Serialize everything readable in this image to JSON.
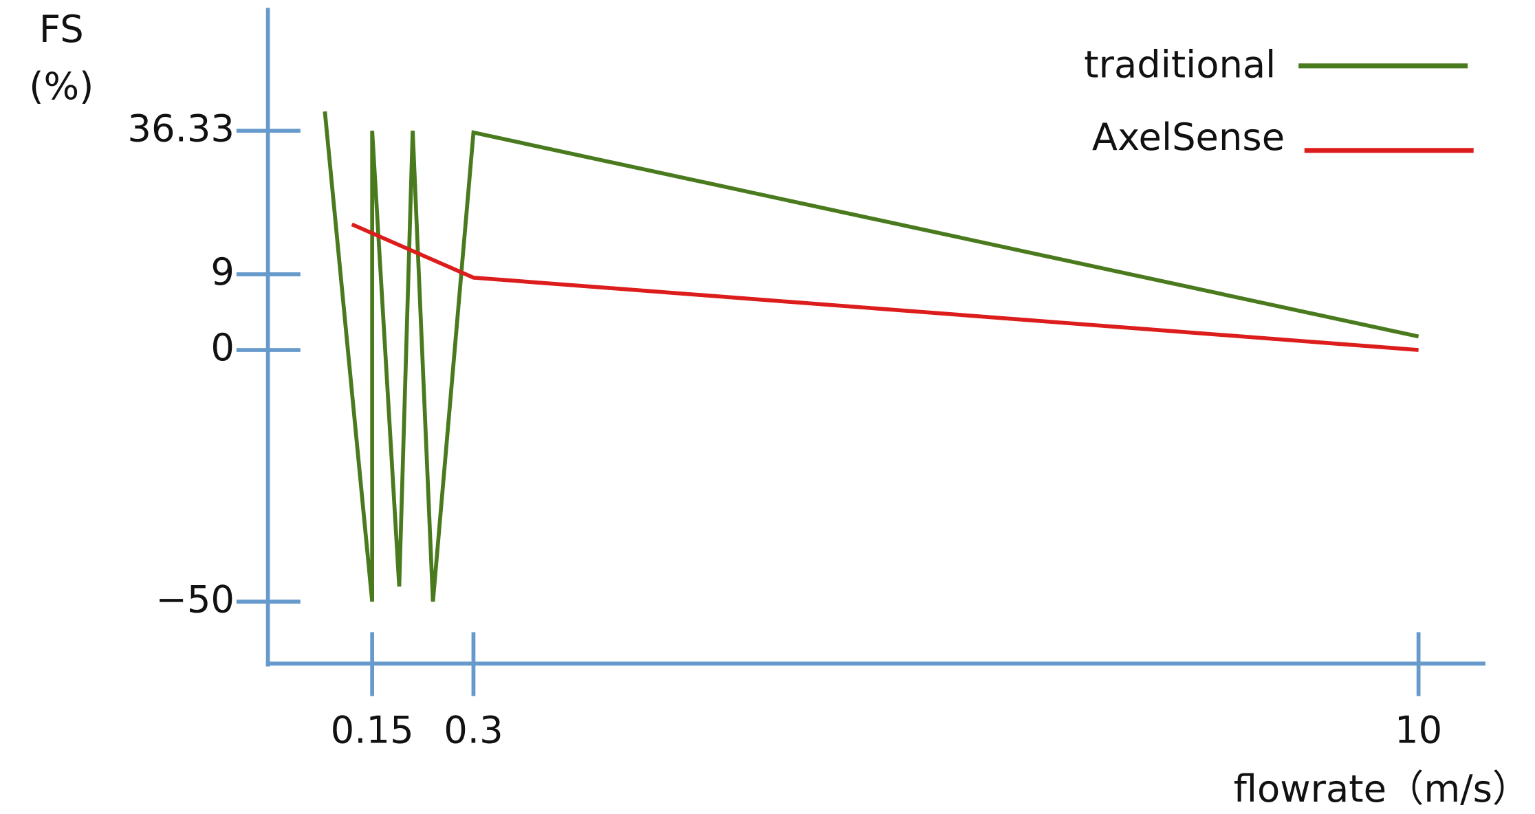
{
  "chart_data": {
    "type": "line",
    "y_label_lines": [
      "FS",
      "(%)"
    ],
    "x_label": "flowrate（m/s）",
    "xticks": [
      0.15,
      0.3,
      10
    ],
    "yticks": [
      36.33,
      9,
      0,
      {
        "value": -50,
        "label": "−50"
      }
    ],
    "legend": "top-right",
    "axis_color": "#6699cc",
    "series": [
      {
        "name": "traditional",
        "color": "#4a7a1e",
        "x": [
          0.08,
          0.15,
          0.15,
          0.19,
          0.21,
          0.24,
          0.3,
          10
        ],
        "values": [
          40,
          -50,
          36.33,
          -47,
          36.33,
          -50,
          36,
          1.6
        ]
      },
      {
        "name": "AxelSense",
        "color": "#dd1c1c",
        "x": [
          0.12,
          0.3,
          10
        ],
        "values": [
          18.5,
          8.6,
          0
        ]
      }
    ]
  }
}
